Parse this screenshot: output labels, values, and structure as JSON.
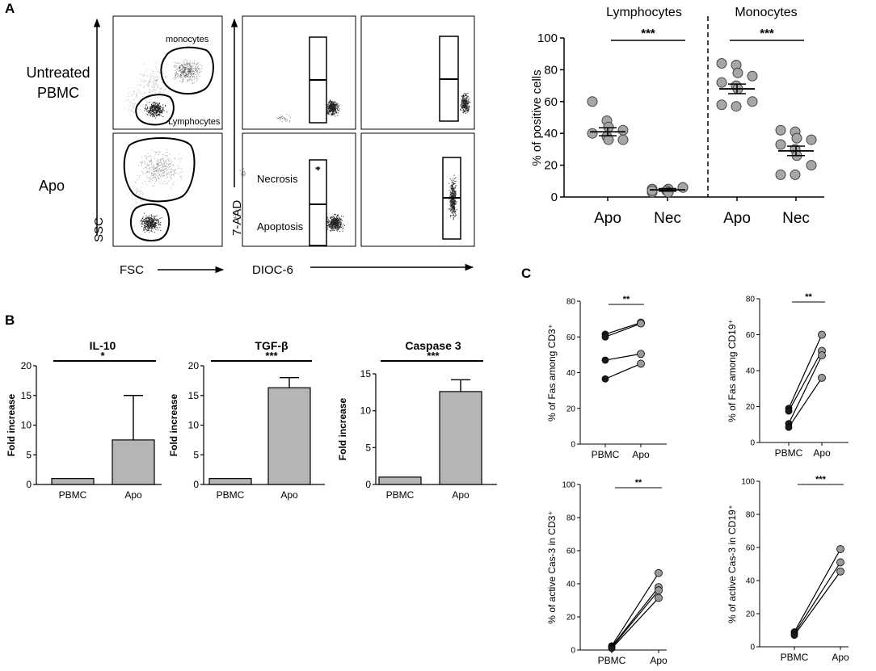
{
  "panel_labels": {
    "a": "A",
    "b": "B",
    "c": "C"
  },
  "panel_a": {
    "flow": {
      "row_labels": [
        [
          "Untreated",
          "PBMC"
        ],
        [
          "Apo"
        ]
      ],
      "gate_labels": {
        "monocytes": "monocytes",
        "lymphocytes": "Lymphocytes"
      },
      "quadrant_labels": {
        "necrosis": "Necrosis",
        "apoptosis": "Apoptosis"
      },
      "axis_labels": {
        "ssc": "SSC",
        "fsc": "FSC",
        "aad": "7-AAD",
        "dioc": "DIOC-6"
      }
    },
    "scatter": {
      "type": "scatter",
      "group_titles": [
        "Lymphocytes",
        "Monocytes"
      ],
      "ylabel": "% of positive cells",
      "yticks": [
        0,
        20,
        40,
        60,
        80,
        100
      ],
      "ylim": [
        0,
        100
      ],
      "xticks": [
        "Apo",
        "Nec",
        "Apo",
        "Nec"
      ],
      "significance": [
        "***",
        "***"
      ],
      "series": [
        {
          "name": "Lymphocytes Apo",
          "mean": 41,
          "sem": 2.5,
          "values": [
            60,
            48,
            44,
            42,
            40,
            38,
            36,
            36
          ]
        },
        {
          "name": "Lymphocytes Nec",
          "mean": 4.5,
          "sem": 0.8,
          "values": [
            3,
            4,
            5,
            6,
            5,
            4,
            3,
            6,
            4
          ]
        },
        {
          "name": "Monocytes Apo",
          "mean": 68,
          "sem": 3,
          "values": [
            84,
            83,
            78,
            76,
            72,
            70,
            68,
            60,
            58,
            57
          ]
        },
        {
          "name": "Monocytes Nec",
          "mean": 29,
          "sem": 3,
          "values": [
            42,
            41,
            37,
            36,
            33,
            30,
            26,
            20,
            14,
            14
          ]
        }
      ]
    }
  },
  "chart_data": [
    {
      "type": "bar",
      "title": "IL-10",
      "significance": "*",
      "categories": [
        "PBMC",
        "Apo"
      ],
      "values": [
        1,
        7.5
      ],
      "errors": [
        0,
        7.5
      ],
      "ylabel": "Fold increase",
      "ylim": [
        0,
        20
      ],
      "yticks": [
        0,
        5,
        10,
        15,
        20
      ]
    },
    {
      "type": "bar",
      "title": "TGF-β",
      "significance": "***",
      "categories": [
        "PBMC",
        "Apo"
      ],
      "values": [
        1,
        16.3
      ],
      "errors": [
        0,
        1.7
      ],
      "ylabel": "Fold increase",
      "ylim": [
        0,
        20
      ],
      "yticks": [
        0,
        5,
        10,
        15,
        20
      ]
    },
    {
      "type": "bar",
      "title": "Caspase 3",
      "significance": "***",
      "categories": [
        "PBMC",
        "Apo"
      ],
      "values": [
        1,
        12.6
      ],
      "errors": [
        0,
        1.6
      ],
      "ylabel": "Fold increase",
      "ylim": [
        0,
        15
      ],
      "yticks": [
        0,
        5,
        10,
        15
      ]
    },
    {
      "type": "line",
      "ylabel": "% of Fas among CD3⁺",
      "categories": [
        "PBMC",
        "Apo"
      ],
      "ylim": [
        0,
        80
      ],
      "yticks": [
        0,
        20,
        40,
        60,
        80
      ],
      "significance": "**",
      "pbmc_color": "#1a1a1a",
      "apo_color": "#999999",
      "pairs": [
        [
          61.5,
          68
        ],
        [
          60,
          67.5
        ],
        [
          47,
          50.5
        ],
        [
          36.5,
          45
        ]
      ]
    },
    {
      "type": "line",
      "ylabel": "% of Fas among CD19⁺",
      "categories": [
        "PBMC",
        "Apo"
      ],
      "ylim": [
        0,
        80
      ],
      "yticks": [
        0,
        20,
        40,
        60,
        80
      ],
      "significance": "**",
      "pbmc_color": "#1a1a1a",
      "apo_color": "#999999",
      "pairs": [
        [
          19,
          60
        ],
        [
          17.5,
          51
        ],
        [
          10.5,
          48.5
        ],
        [
          8.5,
          36
        ]
      ]
    },
    {
      "type": "line",
      "ylabel": "% of active Cas-3 in CD3⁺",
      "categories": [
        "PBMC",
        "Apo"
      ],
      "ylim": [
        0,
        100
      ],
      "yticks": [
        0,
        20,
        40,
        60,
        80,
        100
      ],
      "significance": "**",
      "pbmc_color": "#1a1a1a",
      "apo_color": "#999999",
      "pairs": [
        [
          2.5,
          46.5
        ],
        [
          2,
          38
        ],
        [
          1.5,
          36
        ],
        [
          1,
          31.5
        ]
      ]
    },
    {
      "type": "line",
      "ylabel": "% of active Cas-3 in CD19⁺",
      "categories": [
        "PBMC",
        "Apo"
      ],
      "ylim": [
        0,
        100
      ],
      "yticks": [
        0,
        20,
        40,
        60,
        80,
        100
      ],
      "significance": "***",
      "pbmc_color": "#1a1a1a",
      "apo_color": "#999999",
      "pairs": [
        [
          9,
          59
        ],
        [
          8,
          51
        ],
        [
          7,
          45.5
        ]
      ]
    }
  ]
}
